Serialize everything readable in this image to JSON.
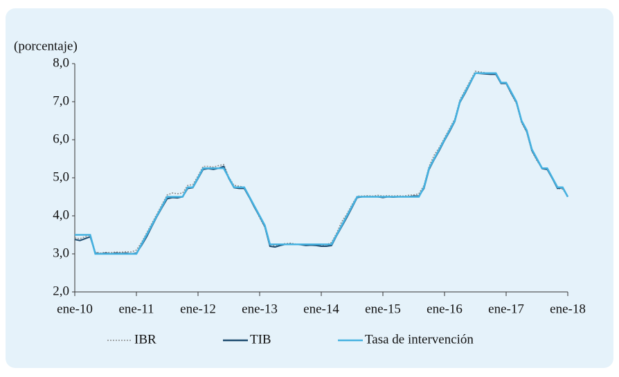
{
  "chart_data": {
    "type": "line",
    "y_label": "(porcentaje)",
    "categories": [
      "ene-10",
      null,
      null,
      null,
      null,
      null,
      null,
      null,
      null,
      null,
      null,
      null,
      "ene-11",
      null,
      null,
      null,
      null,
      null,
      null,
      null,
      null,
      null,
      null,
      null,
      "ene-12",
      null,
      null,
      null,
      null,
      null,
      null,
      null,
      null,
      null,
      null,
      null,
      "ene-13",
      null,
      null,
      null,
      null,
      null,
      null,
      null,
      null,
      null,
      null,
      null,
      "ene-14",
      null,
      null,
      null,
      null,
      null,
      null,
      null,
      null,
      null,
      null,
      null,
      "ene-15",
      null,
      null,
      null,
      null,
      null,
      null,
      null,
      null,
      null,
      null,
      null,
      "ene-16",
      null,
      null,
      null,
      null,
      null,
      null,
      null,
      null,
      null,
      null,
      null,
      "ene-17",
      null,
      null,
      null,
      null,
      null,
      null,
      null,
      null,
      null,
      null,
      null,
      "ene-18"
    ],
    "series": [
      {
        "name": "IBR",
        "color": "#8a8a8a",
        "dash": "dotted",
        "values": [
          3.42,
          3.4,
          3.45,
          3.5,
          3.05,
          3.02,
          3.04,
          3.03,
          3.05,
          3.04,
          3.06,
          3.05,
          3.1,
          3.3,
          3.55,
          3.8,
          4.05,
          4.3,
          4.55,
          4.6,
          4.58,
          4.6,
          4.8,
          4.82,
          5.05,
          5.3,
          5.3,
          5.28,
          5.32,
          5.35,
          5.02,
          4.8,
          4.78,
          4.75,
          4.5,
          4.25,
          3.95,
          3.7,
          3.2,
          3.22,
          3.25,
          3.27,
          3.28,
          3.26,
          3.25,
          3.24,
          3.25,
          3.24,
          3.22,
          3.24,
          3.3,
          3.55,
          3.85,
          4.05,
          4.3,
          4.52,
          4.52,
          4.53,
          4.52,
          4.54,
          4.52,
          4.53,
          4.52,
          4.53,
          4.52,
          4.54,
          4.55,
          4.58,
          4.8,
          5.3,
          5.6,
          5.8,
          6.05,
          6.3,
          6.55,
          7.05,
          7.3,
          7.55,
          7.8,
          7.78,
          7.76,
          7.75,
          7.74,
          7.5,
          7.48,
          7.2,
          6.95,
          6.45,
          6.2,
          5.7,
          5.45,
          5.25,
          5.22,
          4.98,
          4.72,
          4.7,
          4.52
        ]
      },
      {
        "name": "TIB",
        "color": "#1c4a6e",
        "dash": "solid",
        "values": [
          3.38,
          3.35,
          3.4,
          3.45,
          3.02,
          3.0,
          3.02,
          3.0,
          3.02,
          3.01,
          3.02,
          3.0,
          3.02,
          3.22,
          3.45,
          3.72,
          3.98,
          4.22,
          4.45,
          4.48,
          4.47,
          4.5,
          4.72,
          4.74,
          4.98,
          5.22,
          5.24,
          5.22,
          5.25,
          5.3,
          4.98,
          4.74,
          4.72,
          4.72,
          4.48,
          4.22,
          3.98,
          3.72,
          3.2,
          3.18,
          3.22,
          3.25,
          3.26,
          3.25,
          3.24,
          3.22,
          3.23,
          3.22,
          3.2,
          3.2,
          3.22,
          3.48,
          3.72,
          3.96,
          4.22,
          4.48,
          4.5,
          4.5,
          4.5,
          4.5,
          4.48,
          4.5,
          4.49,
          4.5,
          4.5,
          4.5,
          4.52,
          4.52,
          4.72,
          5.22,
          5.48,
          5.72,
          5.98,
          6.22,
          6.48,
          6.98,
          7.22,
          7.48,
          7.75,
          7.74,
          7.73,
          7.72,
          7.72,
          7.48,
          7.48,
          7.22,
          6.98,
          6.48,
          6.22,
          5.72,
          5.48,
          5.24,
          5.22,
          4.98,
          4.72,
          4.74,
          4.5
        ]
      },
      {
        "name": "Tasa de intervención",
        "color": "#45b1e0",
        "dash": "solid",
        "values": [
          3.5,
          3.5,
          3.5,
          3.5,
          3,
          3,
          3,
          3,
          3,
          3,
          3,
          3,
          3,
          3.25,
          3.5,
          3.75,
          4,
          4.25,
          4.5,
          4.5,
          4.5,
          4.5,
          4.75,
          4.75,
          5,
          5.25,
          5.25,
          5.25,
          5.25,
          5.25,
          5,
          4.75,
          4.75,
          4.75,
          4.5,
          4.25,
          4,
          3.75,
          3.25,
          3.25,
          3.25,
          3.25,
          3.25,
          3.25,
          3.25,
          3.25,
          3.25,
          3.25,
          3.25,
          3.25,
          3.25,
          3.5,
          3.75,
          4,
          4.25,
          4.5,
          4.5,
          4.5,
          4.5,
          4.5,
          4.5,
          4.5,
          4.5,
          4.5,
          4.5,
          4.5,
          4.5,
          4.5,
          4.75,
          5.25,
          5.5,
          5.75,
          6,
          6.25,
          6.5,
          7,
          7.25,
          7.5,
          7.75,
          7.75,
          7.75,
          7.75,
          7.75,
          7.5,
          7.5,
          7.25,
          7,
          6.5,
          6.25,
          5.75,
          5.5,
          5.25,
          5.25,
          5,
          4.75,
          4.75,
          4.5
        ]
      }
    ],
    "ylim": [
      2,
      8
    ],
    "yticks": [
      {
        "value": 2,
        "label": "2,0"
      },
      {
        "value": 3,
        "label": "3,0"
      },
      {
        "value": 4,
        "label": "4,0"
      },
      {
        "value": 5,
        "label": "5,0"
      },
      {
        "value": 6,
        "label": "6,0"
      },
      {
        "value": 7,
        "label": "7,0"
      },
      {
        "value": 8,
        "label": "8,0"
      }
    ],
    "grid": false,
    "legend": "bottom"
  }
}
